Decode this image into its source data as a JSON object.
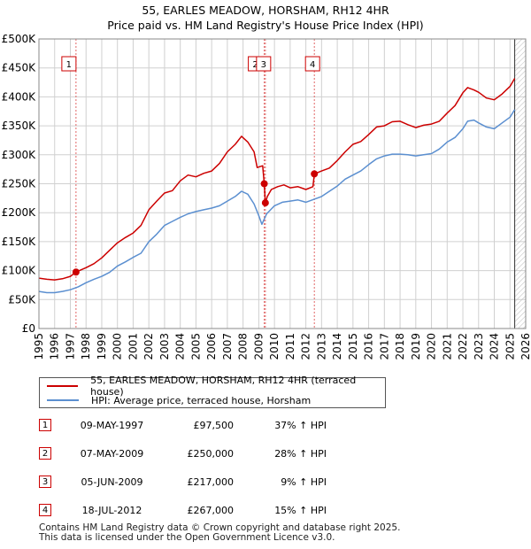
{
  "title_line1": "55, EARLES MEADOW, HORSHAM, RH12 4HR",
  "title_line2": "Price paid vs. HM Land Registry's House Price Index (HPI)",
  "legend": {
    "property": "55, EARLES MEADOW, HORSHAM, RH12 4HR (terraced house)",
    "hpi": "HPI: Average price, terraced house, Horsham"
  },
  "sales": [
    {
      "id": "1",
      "date": "09-MAY-1997",
      "price": "£97,500",
      "pct": "37% ↑ HPI"
    },
    {
      "id": "2",
      "date": "07-MAY-2009",
      "price": "£250,000",
      "pct": "28% ↑ HPI"
    },
    {
      "id": "3",
      "date": "05-JUN-2009",
      "price": "£217,000",
      "pct": "9% ↑ HPI"
    },
    {
      "id": "4",
      "date": "18-JUL-2012",
      "price": "£267,000",
      "pct": "15% ↑ HPI"
    }
  ],
  "footer_line1": "Contains HM Land Registry data © Crown copyright and database right 2025.",
  "footer_line2": "This data is licensed under the Open Government Licence v3.0.",
  "colors": {
    "property": "#cc0000",
    "hpi": "#5b8fd0",
    "grid": "#d0d0d0",
    "vline": "#e06666"
  },
  "chart_data": {
    "type": "line",
    "title": "Price paid vs. HM Land Registry's House Price Index (HPI)",
    "xlim": [
      1995,
      2026
    ],
    "ylim": [
      0,
      500000
    ],
    "x_ticks": [
      "1995",
      "1996",
      "1997",
      "1998",
      "1999",
      "2000",
      "2001",
      "2002",
      "2003",
      "2004",
      "2005",
      "2006",
      "2007",
      "2008",
      "2009",
      "2010",
      "2011",
      "2012",
      "2013",
      "2014",
      "2015",
      "2016",
      "2017",
      "2018",
      "2019",
      "2020",
      "2021",
      "2022",
      "2023",
      "2024",
      "2025",
      "2026"
    ],
    "y_ticks": [
      {
        "value": 0,
        "label": "£0"
      },
      {
        "value": 50000,
        "label": "£50K"
      },
      {
        "value": 100000,
        "label": "£100K"
      },
      {
        "value": 150000,
        "label": "£150K"
      },
      {
        "value": 200000,
        "label": "£200K"
      },
      {
        "value": 250000,
        "label": "£250K"
      },
      {
        "value": 300000,
        "label": "£300K"
      },
      {
        "value": 350000,
        "label": "£350K"
      },
      {
        "value": 400000,
        "label": "£400K"
      },
      {
        "value": 450000,
        "label": "£450K"
      },
      {
        "value": 500000,
        "label": "£500K"
      }
    ],
    "series": [
      {
        "name": "55, EARLES MEADOW, HORSHAM, RH12 4HR (terraced house)",
        "points": [
          [
            1995.0,
            87000
          ],
          [
            1995.5,
            85000
          ],
          [
            1996.0,
            84000
          ],
          [
            1996.5,
            86000
          ],
          [
            1997.0,
            90000
          ],
          [
            1997.36,
            97500
          ],
          [
            1998.0,
            105000
          ],
          [
            1998.5,
            112000
          ],
          [
            1999.0,
            122000
          ],
          [
            1999.5,
            135000
          ],
          [
            2000.0,
            148000
          ],
          [
            2000.5,
            157000
          ],
          [
            2001.0,
            165000
          ],
          [
            2001.5,
            178000
          ],
          [
            2002.0,
            205000
          ],
          [
            2002.5,
            220000
          ],
          [
            2003.0,
            234000
          ],
          [
            2003.5,
            238000
          ],
          [
            2004.0,
            255000
          ],
          [
            2004.5,
            265000
          ],
          [
            2005.0,
            262000
          ],
          [
            2005.5,
            268000
          ],
          [
            2006.0,
            272000
          ],
          [
            2006.5,
            285000
          ],
          [
            2007.0,
            305000
          ],
          [
            2007.5,
            318000
          ],
          [
            2007.9,
            332000
          ],
          [
            2008.3,
            322000
          ],
          [
            2008.7,
            305000
          ],
          [
            2008.9,
            278000
          ],
          [
            2009.25,
            281000
          ],
          [
            2009.35,
            250000
          ],
          [
            2009.42,
            217000
          ],
          [
            2009.55,
            228000
          ],
          [
            2009.8,
            240000
          ],
          [
            2010.2,
            245000
          ],
          [
            2010.6,
            248000
          ],
          [
            2011.0,
            243000
          ],
          [
            2011.5,
            245000
          ],
          [
            2012.0,
            240000
          ],
          [
            2012.45,
            245000
          ],
          [
            2012.54,
            267000
          ],
          [
            2013.0,
            272000
          ],
          [
            2013.5,
            277000
          ],
          [
            2014.0,
            290000
          ],
          [
            2014.5,
            305000
          ],
          [
            2015.0,
            318000
          ],
          [
            2015.5,
            323000
          ],
          [
            2016.0,
            335000
          ],
          [
            2016.5,
            348000
          ],
          [
            2017.0,
            350000
          ],
          [
            2017.5,
            357000
          ],
          [
            2018.0,
            358000
          ],
          [
            2018.5,
            352000
          ],
          [
            2019.0,
            347000
          ],
          [
            2019.5,
            351000
          ],
          [
            2020.0,
            353000
          ],
          [
            2020.5,
            358000
          ],
          [
            2021.0,
            372000
          ],
          [
            2021.5,
            385000
          ],
          [
            2022.0,
            407000
          ],
          [
            2022.3,
            416000
          ],
          [
            2022.7,
            412000
          ],
          [
            2023.0,
            408000
          ],
          [
            2023.5,
            398000
          ],
          [
            2024.0,
            395000
          ],
          [
            2024.5,
            405000
          ],
          [
            2025.0,
            418000
          ],
          [
            2025.3,
            432000
          ]
        ]
      },
      {
        "name": "HPI: Average price, terraced house, Horsham",
        "points": [
          [
            1995.0,
            64000
          ],
          [
            1995.5,
            62000
          ],
          [
            1996.0,
            62000
          ],
          [
            1996.5,
            64000
          ],
          [
            1997.0,
            67000
          ],
          [
            1997.5,
            72000
          ],
          [
            1998.0,
            79000
          ],
          [
            1998.5,
            85000
          ],
          [
            1999.0,
            90000
          ],
          [
            1999.5,
            97000
          ],
          [
            2000.0,
            108000
          ],
          [
            2000.5,
            115000
          ],
          [
            2001.0,
            123000
          ],
          [
            2001.5,
            130000
          ],
          [
            2002.0,
            150000
          ],
          [
            2002.5,
            163000
          ],
          [
            2003.0,
            178000
          ],
          [
            2003.5,
            185000
          ],
          [
            2004.0,
            192000
          ],
          [
            2004.5,
            198000
          ],
          [
            2005.0,
            202000
          ],
          [
            2005.5,
            205000
          ],
          [
            2006.0,
            208000
          ],
          [
            2006.5,
            212000
          ],
          [
            2007.0,
            220000
          ],
          [
            2007.5,
            228000
          ],
          [
            2007.9,
            237000
          ],
          [
            2008.3,
            232000
          ],
          [
            2008.7,
            215000
          ],
          [
            2009.0,
            195000
          ],
          [
            2009.2,
            180000
          ],
          [
            2009.5,
            198000
          ],
          [
            2010.0,
            212000
          ],
          [
            2010.5,
            218000
          ],
          [
            2011.0,
            220000
          ],
          [
            2011.5,
            222000
          ],
          [
            2012.0,
            218000
          ],
          [
            2012.5,
            223000
          ],
          [
            2013.0,
            228000
          ],
          [
            2013.5,
            237000
          ],
          [
            2014.0,
            246000
          ],
          [
            2014.5,
            258000
          ],
          [
            2015.0,
            265000
          ],
          [
            2015.5,
            272000
          ],
          [
            2016.0,
            283000
          ],
          [
            2016.5,
            293000
          ],
          [
            2017.0,
            298000
          ],
          [
            2017.5,
            301000
          ],
          [
            2018.0,
            301000
          ],
          [
            2018.5,
            300000
          ],
          [
            2019.0,
            298000
          ],
          [
            2019.5,
            300000
          ],
          [
            2020.0,
            302000
          ],
          [
            2020.5,
            310000
          ],
          [
            2021.0,
            322000
          ],
          [
            2021.5,
            330000
          ],
          [
            2022.0,
            345000
          ],
          [
            2022.3,
            358000
          ],
          [
            2022.7,
            360000
          ],
          [
            2023.0,
            355000
          ],
          [
            2023.5,
            348000
          ],
          [
            2024.0,
            345000
          ],
          [
            2024.5,
            355000
          ],
          [
            2025.0,
            365000
          ],
          [
            2025.3,
            378000
          ]
        ]
      }
    ],
    "sale_markers": [
      {
        "id": "1",
        "x": 1997.36,
        "y": 97500
      },
      {
        "id": "2",
        "x": 2009.35,
        "y": 250000
      },
      {
        "id": "3",
        "x": 2009.42,
        "y": 217000
      },
      {
        "id": "4",
        "x": 2012.54,
        "y": 267000
      }
    ],
    "hatch_from": 2025.3
  }
}
